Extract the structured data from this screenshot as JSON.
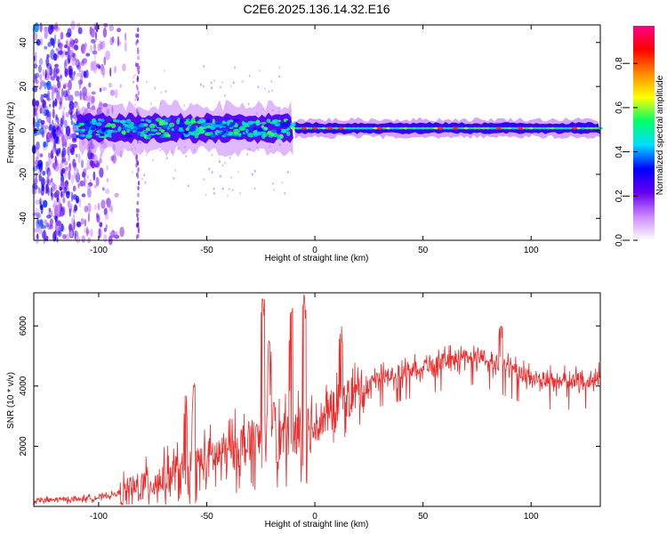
{
  "page": {
    "title": "C2E6.2025.136.14.32.E16"
  },
  "colors": {
    "frame": "#000000",
    "snr_line": "#ee2a2a",
    "background": "#ffffff"
  },
  "chart_data": [
    {
      "type": "heatmap",
      "title": "C2E6.2025.136.14.32.E16",
      "xlabel": "Height of straight line (km)",
      "ylabel": "Frequency (Hz)",
      "xlim": [
        -130,
        132
      ],
      "ylim": [
        -50,
        48
      ],
      "x_ticks": [
        -100,
        -50,
        0,
        50,
        100
      ],
      "y_ticks": [
        -40,
        -20,
        0,
        20,
        40
      ],
      "grid": false,
      "colorbar": {
        "label": "Normalized spectral amplitude",
        "range": [
          0,
          0.97
        ],
        "ticks": [
          0.0,
          0.2,
          0.4,
          0.6,
          0.8
        ],
        "tick_labels": [
          "0.0",
          "0.2",
          "0.4",
          "0.6",
          "0.8"
        ],
        "colormap": [
          "#ffffff",
          "#cc88ff",
          "#6600ee",
          "#0000ff",
          "#00ddff",
          "#00ff66",
          "#ffff00",
          "#ff8800",
          "#ff0000",
          "#ff0088"
        ]
      },
      "band": {
        "center_freq_hz": 1,
        "start_km": -110,
        "strong_segment_km": [
          -110,
          -10
        ],
        "narrow_segment_km": [
          -10,
          132
        ],
        "hot_spots_km": [
          -5,
          0,
          7,
          12,
          30,
          58,
          65,
          85,
          95,
          120
        ]
      },
      "scatter_region_km": [
        -130,
        -85
      ]
    },
    {
      "type": "line",
      "xlabel": "Height of straight line (km)",
      "ylabel": "SNR (10 * v/v)",
      "xlim": [
        -130,
        132
      ],
      "ylim": [
        0,
        7100
      ],
      "x_ticks": [
        -100,
        -50,
        0,
        50,
        100
      ],
      "y_ticks": [
        2000,
        4000,
        6000
      ],
      "grid": false,
      "series": [
        {
          "envelope_x": [
            -130,
            -110,
            -100,
            -90,
            -80,
            -70,
            -60,
            -50,
            -40,
            -30,
            -20,
            -10,
            0,
            10,
            20,
            30,
            40,
            50,
            60,
            70,
            75,
            80,
            90,
            100,
            110,
            120,
            132
          ],
          "envelope_y": [
            200,
            250,
            300,
            450,
            700,
            1000,
            1300,
            1600,
            1900,
            2200,
            2300,
            2400,
            2800,
            3300,
            3900,
            4300,
            4500,
            4700,
            4850,
            5000,
            5050,
            4900,
            4600,
            4300,
            4200,
            4200,
            4300
          ],
          "spikes": [
            {
              "x": -60,
              "y": 3700
            },
            {
              "x": -56,
              "y": 4100
            },
            {
              "x": -24,
              "y": 6900
            },
            {
              "x": -21,
              "y": 5600
            },
            {
              "x": -19,
              "y": 3500
            },
            {
              "x": -11,
              "y": 6700
            },
            {
              "x": -5,
              "y": 7100
            },
            {
              "x": 12,
              "y": 6000
            },
            {
              "x": 86,
              "y": 6000
            }
          ]
        }
      ]
    }
  ]
}
